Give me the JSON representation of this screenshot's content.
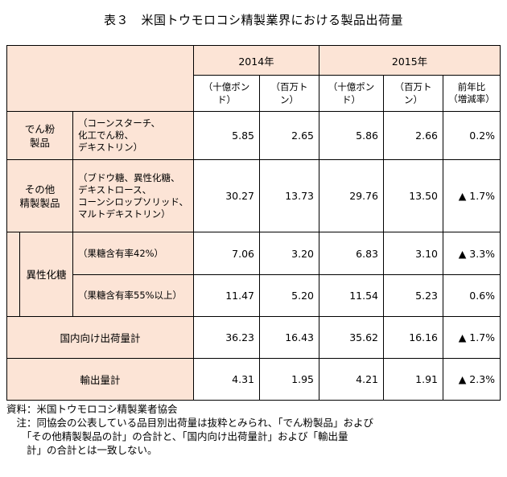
{
  "title": "表３　米国トウモロコシ精製業界における製品出荷量",
  "header": {
    "year1": "2014年",
    "year2": "2015年",
    "unit_lb": "（十億ポンド）",
    "unit_t": "（百万トン）",
    "unit_lb2": "（十億ポンド）",
    "unit_t2": "（百万トン）",
    "yoy": "前年比\n（増減率）"
  },
  "rows": {
    "starch": {
      "cat": "でん粉\n製品",
      "desc": "（コーンスターチ、\n化工でん粉、\nデキストリン）",
      "v": [
        "5.85",
        "2.65",
        "5.86",
        "2.66",
        "0.2%"
      ]
    },
    "sweet": {
      "cat": "その他\n精製製品",
      "desc": "（ブドウ糖、異性化糖、\nデキストロース、\nコーンシロップソリッド、\nマルトデキストリン）",
      "v": [
        "30.27",
        "13.73",
        "29.76",
        "13.50",
        "▲ 1.7%"
      ]
    },
    "hfcs_label": "異性化糖",
    "hfcs42": {
      "desc": "（果糖含有率42%）",
      "v": [
        "7.06",
        "3.20",
        "6.83",
        "3.10",
        "▲ 3.3%"
      ]
    },
    "hfcs55": {
      "desc": "（果糖含有率55%以上）",
      "v": [
        "11.47",
        "5.20",
        "11.54",
        "5.23",
        "0.6%"
      ]
    },
    "domestic": {
      "label": "国内向け出荷量計",
      "v": [
        "36.23",
        "16.43",
        "35.62",
        "16.16",
        "▲ 1.7%"
      ]
    },
    "export": {
      "label": "輸出量計",
      "v": [
        "4.31",
        "1.95",
        "4.21",
        "1.91",
        "▲ 2.3%"
      ]
    }
  },
  "notes": {
    "source": "資料：米国トウモロコシ精製業者協会",
    "note1": "　注：同協会の公表している品目別出荷量は抜粋とみられ、「でん粉製品」および",
    "note2": "　　「その他精製製品の計」の合計と、「国内向け出荷量計」および「輸出量",
    "note3": "　　計」の合計とは一致しない。"
  }
}
